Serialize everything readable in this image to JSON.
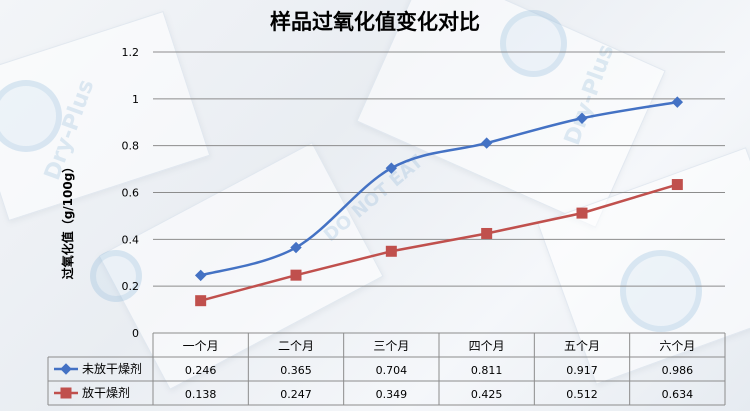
{
  "chart_data": {
    "type": "line",
    "title": "样品过氧化值变化对比",
    "ylabel": "过氧化值（g/100g）",
    "xlabel": "",
    "categories": [
      "一个月",
      "二个月",
      "三个月",
      "四个月",
      "五个月",
      "六个月"
    ],
    "ylim": [
      0,
      1.2
    ],
    "yticks": [
      "0",
      "0.2",
      "0.4",
      "0.6",
      "0.8",
      "1",
      "1.2"
    ],
    "grid": true,
    "legend": "table-left",
    "series": [
      {
        "name": "未放干燥剂",
        "values": [
          0.246,
          0.365,
          0.704,
          0.811,
          0.917,
          0.986
        ],
        "labels": [
          "0.246",
          "0.365",
          "0.704",
          "0.811",
          "0.917",
          "0.986"
        ],
        "color": "#4472C4",
        "marker": "diamond",
        "smooth": true
      },
      {
        "name": "放干燥剂",
        "values": [
          0.138,
          0.247,
          0.349,
          0.425,
          0.512,
          0.634
        ],
        "labels": [
          "0.138",
          "0.247",
          "0.349",
          "0.425",
          "0.512",
          "0.634"
        ],
        "color": "#C0504D",
        "marker": "square",
        "smooth": false
      }
    ]
  },
  "colors": {
    "grid": "#8c8c8c",
    "axis_text": "#000000"
  }
}
